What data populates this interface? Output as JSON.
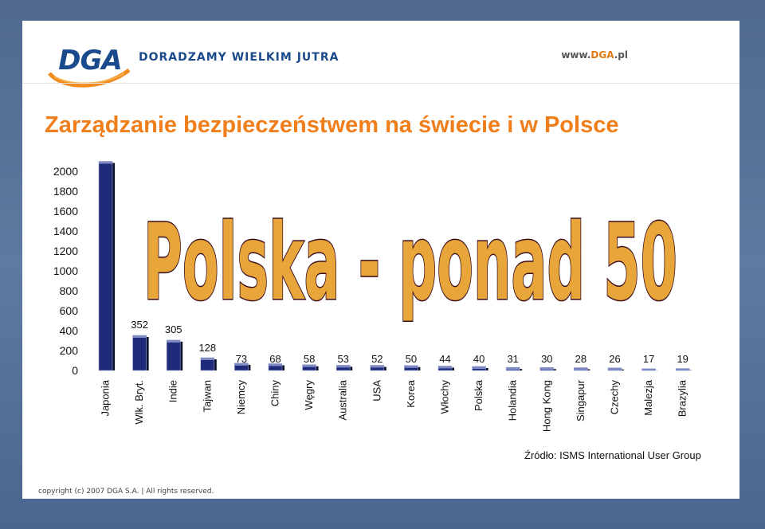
{
  "header": {
    "logo": "DGA",
    "tagline": "DORADZAMY WIELKIM JUTRA",
    "website_prefix": "www.",
    "website_accent": "DGA",
    "website_suffix": ".pl"
  },
  "title": "Zarządzanie bezpieczeństwem na świecie i w Polsce",
  "overlay_text": "Polska - ponad 50",
  "source": "Źródło: ISMS International User Group",
  "copyright": "copyright (c) 2007 DGA S.A. | All rights reserved.",
  "colors": {
    "accent": "#f07e1a",
    "brand": "#1b4a8c",
    "bar_fill": "#1f2b7a",
    "overlay_fill": "#e8a53a",
    "overlay_stroke": "#3b0f1e"
  },
  "chart_data": {
    "type": "bar",
    "categories": [
      "Japonia",
      "Wlk. Bryt.",
      "Indie",
      "Tajwan",
      "Niemcy",
      "Chiny",
      "Węgry",
      "Australia",
      "USA",
      "Korea",
      "Włochy",
      "Polska",
      "Holandia",
      "Hong Kong",
      "Singapur",
      "Czechy",
      "Malezja",
      "Brazylia"
    ],
    "values": [
      2100,
      352,
      305,
      128,
      73,
      68,
      58,
      53,
      52,
      50,
      44,
      40,
      31,
      30,
      28,
      26,
      17,
      19
    ],
    "data_labels": [
      "",
      "352",
      "305",
      "128",
      "73",
      "68",
      "58",
      "53",
      "52",
      "50",
      "44",
      "40",
      "31",
      "30",
      "28",
      "26",
      "17",
      "19"
    ],
    "y_ticks": [
      "0",
      "200",
      "400",
      "600",
      "800",
      "1000",
      "1200",
      "1400",
      "1600",
      "1800",
      "2000"
    ],
    "ylim": [
      0,
      2000
    ],
    "grid": false,
    "legend": "none"
  }
}
